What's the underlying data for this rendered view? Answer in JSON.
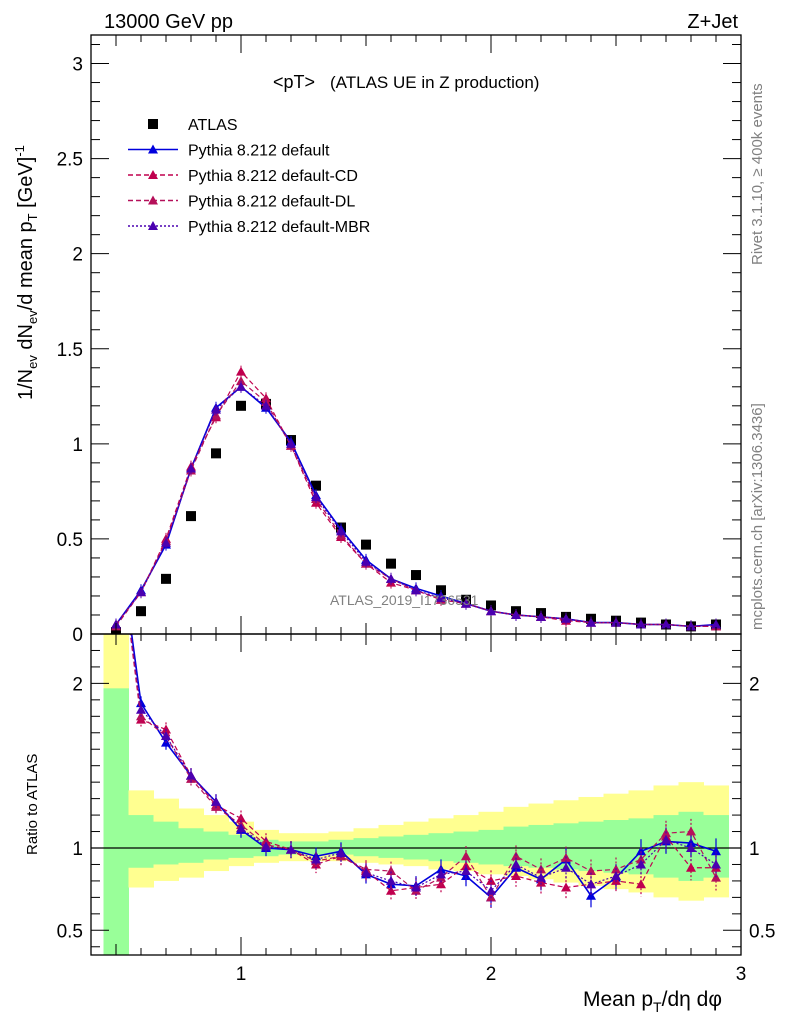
{
  "header": {
    "left": "13000 GeV pp",
    "right": "Z+Jet"
  },
  "side": {
    "rivet": "Rivet 3.1.10, ≥ 400k events",
    "mcplots": "mcplots.cern.ch [arXiv:1306.3436]"
  },
  "watermark": "ATLAS_2019_I1736531",
  "chart_data": [
    {
      "type": "scatter",
      "title": "<pT>",
      "subtitle": "(ATLAS UE in Z production)",
      "ylabel": "1/N_ev dN_ev/d mean p_T [GeV]^-1",
      "xlim": [
        0.4,
        3.0
      ],
      "ylim": [
        0,
        3.15
      ],
      "yticks": [
        0,
        0.5,
        1,
        1.5,
        2,
        2.5,
        3
      ],
      "ytick_labels": [
        "0",
        "0.5",
        "1",
        "1.5",
        "2",
        "2.5",
        "3"
      ],
      "legend": [
        "ATLAS",
        "Pythia 8.212 default",
        "Pythia 8.212 default-CD",
        "Pythia 8.212 default-DL",
        "Pythia 8.212 default-MBR"
      ],
      "x": [
        0.5,
        0.6,
        0.7,
        0.8,
        0.9,
        1.0,
        1.1,
        1.2,
        1.3,
        1.4,
        1.5,
        1.6,
        1.7,
        1.8,
        1.9,
        2.0,
        2.1,
        2.2,
        2.3,
        2.4,
        2.5,
        2.6,
        2.7,
        2.8,
        2.9
      ],
      "series": [
        {
          "name": "ATLAS",
          "color": "#000000",
          "values": [
            0.01,
            0.12,
            0.29,
            0.62,
            0.95,
            1.2,
            1.21,
            1.02,
            0.78,
            0.56,
            0.47,
            0.37,
            0.31,
            0.23,
            0.18,
            0.15,
            0.12,
            0.11,
            0.09,
            0.08,
            0.07,
            0.06,
            0.05,
            0.04,
            0.05
          ]
        },
        {
          "name": "Pythia 8.212 default",
          "color": "#0000dd",
          "values": [
            0.05,
            0.23,
            0.47,
            0.87,
            1.19,
            1.3,
            1.19,
            1.01,
            0.73,
            0.55,
            0.39,
            0.29,
            0.24,
            0.2,
            0.16,
            0.12,
            0.1,
            0.09,
            0.08,
            0.06,
            0.06,
            0.05,
            0.05,
            0.04,
            0.05
          ]
        },
        {
          "name": "Pythia 8.212 default-CD",
          "color": "#c0004e",
          "values": [
            0.05,
            0.22,
            0.5,
            0.88,
            1.14,
            1.38,
            1.24,
            0.99,
            0.69,
            0.51,
            0.37,
            0.27,
            0.23,
            0.18,
            0.16,
            0.12,
            0.1,
            0.09,
            0.07,
            0.06,
            0.06,
            0.05,
            0.05,
            0.04,
            0.04
          ]
        },
        {
          "name": "Pythia 8.212 default-DL",
          "color": "#b5105a",
          "values": [
            0.04,
            0.22,
            0.49,
            0.86,
            1.15,
            1.33,
            1.22,
            0.99,
            0.71,
            0.52,
            0.37,
            0.29,
            0.23,
            0.18,
            0.16,
            0.12,
            0.1,
            0.09,
            0.08,
            0.06,
            0.06,
            0.05,
            0.05,
            0.04,
            0.04
          ]
        },
        {
          "name": "Pythia 8.212 default-MBR",
          "color": "#4a00b0",
          "values": [
            0.05,
            0.22,
            0.48,
            0.87,
            1.18,
            1.3,
            1.2,
            1.0,
            0.72,
            0.54,
            0.38,
            0.29,
            0.23,
            0.19,
            0.16,
            0.12,
            0.1,
            0.09,
            0.08,
            0.06,
            0.06,
            0.05,
            0.05,
            0.04,
            0.05
          ]
        }
      ]
    },
    {
      "type": "line",
      "ylabel": "Ratio to ATLAS",
      "xlabel": "Mean p_T/dη dφ",
      "xlim": [
        0.4,
        3.0
      ],
      "ylim": [
        0.35,
        2.3
      ],
      "xticks": [
        1,
        2,
        3
      ],
      "xtick_labels": [
        "1",
        "2",
        "3"
      ],
      "yticks": [
        0.5,
        1,
        2
      ],
      "ytick_labels": [
        "0.5",
        "1",
        "2"
      ],
      "band_edges": [
        0.45,
        0.55,
        0.65,
        0.75,
        0.85,
        0.95,
        1.05,
        1.15,
        1.25,
        1.35,
        1.45,
        1.55,
        1.65,
        1.75,
        1.85,
        1.95,
        2.05,
        2.15,
        2.25,
        2.35,
        2.45,
        2.55,
        2.65,
        2.75,
        2.85,
        2.95
      ],
      "band_yellow_low": [
        0.1,
        0.76,
        0.8,
        0.82,
        0.86,
        0.89,
        0.91,
        0.92,
        0.92,
        0.92,
        0.91,
        0.9,
        0.89,
        0.87,
        0.86,
        0.84,
        0.83,
        0.81,
        0.79,
        0.77,
        0.75,
        0.73,
        0.7,
        0.68,
        0.7
      ],
      "band_yellow_high": [
        2.3,
        1.35,
        1.3,
        1.24,
        1.2,
        1.16,
        1.11,
        1.09,
        1.09,
        1.1,
        1.12,
        1.14,
        1.16,
        1.18,
        1.2,
        1.22,
        1.25,
        1.27,
        1.29,
        1.31,
        1.33,
        1.35,
        1.38,
        1.4,
        1.38
      ],
      "band_green_low": [
        0.1,
        0.88,
        0.9,
        0.91,
        0.93,
        0.94,
        0.95,
        0.96,
        0.96,
        0.96,
        0.95,
        0.94,
        0.93,
        0.92,
        0.91,
        0.9,
        0.89,
        0.88,
        0.87,
        0.86,
        0.85,
        0.84,
        0.82,
        0.8,
        0.82
      ],
      "band_green_high": [
        1.97,
        1.2,
        1.16,
        1.12,
        1.1,
        1.08,
        1.05,
        1.04,
        1.04,
        1.05,
        1.06,
        1.07,
        1.08,
        1.09,
        1.1,
        1.11,
        1.13,
        1.14,
        1.15,
        1.16,
        1.17,
        1.18,
        1.2,
        1.22,
        1.2
      ],
      "x": [
        0.5,
        0.6,
        0.7,
        0.8,
        0.9,
        1.0,
        1.1,
        1.2,
        1.3,
        1.4,
        1.5,
        1.6,
        1.7,
        1.8,
        1.9,
        2.0,
        2.1,
        2.2,
        2.3,
        2.4,
        2.5,
        2.6,
        2.7,
        2.8,
        2.9
      ],
      "series": [
        {
          "name": "Pythia 8.212 default",
          "color": "#0000dd",
          "values": [
            3.0,
            1.88,
            1.64,
            1.44,
            1.28,
            1.11,
            1.0,
            0.99,
            0.95,
            0.98,
            0.84,
            0.78,
            0.77,
            0.87,
            0.83,
            0.7,
            0.88,
            0.81,
            0.93,
            0.71,
            0.82,
            0.98,
            1.04,
            1.03,
            0.98
          ]
        },
        {
          "name": "Pythia 8.212 default-CD",
          "color": "#c0004e",
          "values": [
            3.0,
            1.78,
            1.72,
            1.44,
            1.26,
            1.18,
            1.04,
            0.99,
            0.9,
            0.95,
            0.86,
            0.74,
            0.76,
            0.78,
            0.89,
            0.8,
            0.83,
            0.79,
            0.76,
            0.78,
            0.8,
            0.78,
            1.07,
            0.88,
            0.88
          ]
        },
        {
          "name": "Pythia 8.212 default-DL",
          "color": "#b5105a",
          "values": [
            3.0,
            1.8,
            1.68,
            1.42,
            1.25,
            1.14,
            1.02,
            0.99,
            0.92,
            0.95,
            0.87,
            0.86,
            0.74,
            0.82,
            0.95,
            0.7,
            0.95,
            0.87,
            0.94,
            0.86,
            0.87,
            0.93,
            1.09,
            1.1,
            0.82
          ]
        },
        {
          "name": "Pythia 8.212 default-MBR",
          "color": "#4a00b0",
          "values": [
            3.0,
            1.84,
            1.68,
            1.44,
            1.28,
            1.12,
            1.01,
            0.99,
            0.93,
            0.97,
            0.85,
            0.8,
            0.76,
            0.84,
            0.86,
            0.74,
            0.9,
            0.82,
            0.88,
            0.78,
            0.83,
            0.9,
            1.05,
            1.0,
            0.9
          ]
        }
      ]
    }
  ]
}
